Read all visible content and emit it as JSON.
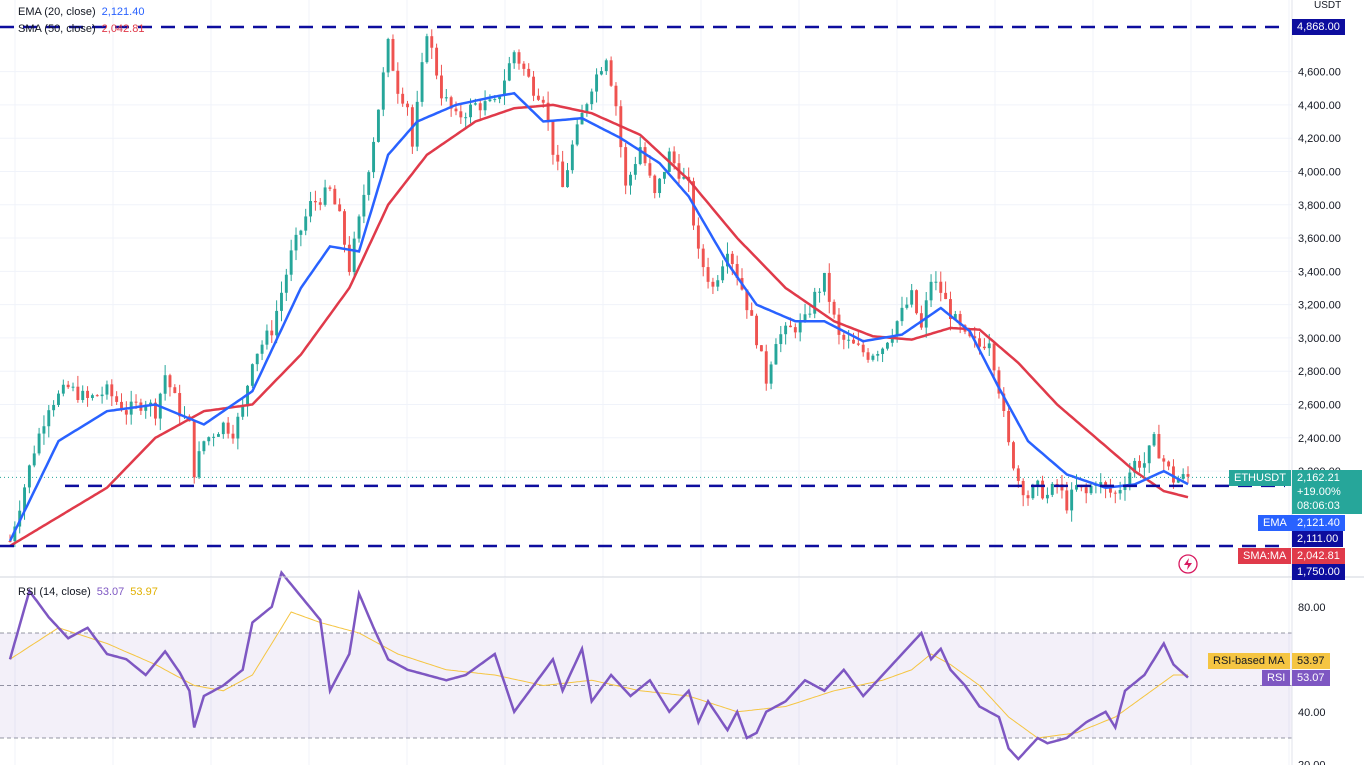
{
  "legend": {
    "ema_label": "EMA (20, close)",
    "ema_value": "2,121.40",
    "sma_label": "SMA (50, close)",
    "sma_value": "2,042.81",
    "rsi_label": "RSI (14, close)",
    "rsi_value": "53.07",
    "rsi_ma_value": "53.97"
  },
  "price_axis": {
    "currency": "USDT",
    "ticks": [
      "4,600.00",
      "4,400.00",
      "4,200.00",
      "4,000.00",
      "3,800.00",
      "3,600.00",
      "3,400.00",
      "3,200.00",
      "3,000.00",
      "2,800.00",
      "2,600.00",
      "2,400.00",
      "2,200.00"
    ],
    "tick_values": [
      4600,
      4400,
      4200,
      4000,
      3800,
      3600,
      3400,
      3200,
      3000,
      2800,
      2600,
      2400,
      2200
    ]
  },
  "rsi_axis": {
    "ticks": [
      "80.00",
      "40.00",
      "20.00"
    ],
    "tick_values": [
      80,
      40,
      20
    ],
    "band": [
      30,
      70
    ]
  },
  "tags": {
    "level_top": "4,868.00",
    "symbol": "ETHUSDT",
    "last_price": "2,162.21",
    "change": "+19.00%",
    "countdown": "08:06:03",
    "ema_name": "EMA",
    "ema_value": "2,121.40",
    "level_mid": "2,111.00",
    "sma_name": "SMA:MA",
    "sma_value": "2,042.81",
    "level_low": "1,750.00",
    "rsi_ma_name": "RSI-based MA",
    "rsi_ma_value": "53.97",
    "rsi_name": "RSI",
    "rsi_value": "53.07"
  },
  "colors": {
    "up": "#26a69a",
    "down": "#ef5350",
    "ema": "#2962ff",
    "sma": "#e03a4a",
    "level": "#0d0d9e",
    "rsi": "#7e57c2",
    "rsi_ma": "#f5c542",
    "last_price": "#26a69a"
  },
  "chart_data": {
    "type": "candlestick",
    "symbol": "ETHUSDT",
    "horizontal_levels": [
      4868,
      2111,
      1750
    ],
    "last_price": 2162.21,
    "ema20_last": 2121.4,
    "sma50_last": 2042.81,
    "rsi_last": 53.07,
    "rsi_ma_last": 53.97,
    "price_path": [
      [
        0,
        1780
      ],
      [
        5,
        2330
      ],
      [
        8,
        2600
      ],
      [
        12,
        2700
      ],
      [
        16,
        2630
      ],
      [
        20,
        2680
      ],
      [
        24,
        2560
      ],
      [
        28,
        2620
      ],
      [
        30,
        2560
      ],
      [
        32,
        2780
      ],
      [
        35,
        2560
      ],
      [
        37,
        2470
      ],
      [
        38,
        2200
      ],
      [
        40,
        2380
      ],
      [
        44,
        2480
      ],
      [
        46,
        2440
      ],
      [
        48,
        2570
      ],
      [
        50,
        2880
      ],
      [
        54,
        3050
      ],
      [
        58,
        3500
      ],
      [
        62,
        3800
      ],
      [
        66,
        3880
      ],
      [
        68,
        3720
      ],
      [
        70,
        3420
      ],
      [
        72,
        3700
      ],
      [
        75,
        4200
      ],
      [
        78,
        4760
      ],
      [
        80,
        4500
      ],
      [
        82,
        4400
      ],
      [
        83,
        4150
      ],
      [
        86,
        4850
      ],
      [
        89,
        4470
      ],
      [
        92,
        4320
      ],
      [
        96,
        4400
      ],
      [
        100,
        4400
      ],
      [
        104,
        4720
      ],
      [
        108,
        4500
      ],
      [
        110,
        4450
      ],
      [
        112,
        4130
      ],
      [
        114,
        3900
      ],
      [
        116,
        4150
      ],
      [
        120,
        4520
      ],
      [
        123,
        4700
      ],
      [
        125,
        4400
      ],
      [
        127,
        3900
      ],
      [
        130,
        4150
      ],
      [
        133,
        3850
      ],
      [
        136,
        4100
      ],
      [
        138,
        4000
      ],
      [
        140,
        3900
      ],
      [
        142,
        3500
      ],
      [
        145,
        3300
      ],
      [
        148,
        3550
      ],
      [
        151,
        3300
      ],
      [
        154,
        3000
      ],
      [
        156,
        2750
      ],
      [
        158,
        3000
      ],
      [
        161,
        3050
      ],
      [
        164,
        3100
      ],
      [
        166,
        3250
      ],
      [
        168,
        3350
      ],
      [
        171,
        3000
      ],
      [
        174,
        2950
      ],
      [
        177,
        2900
      ],
      [
        180,
        2950
      ],
      [
        183,
        3100
      ],
      [
        186,
        3250
      ],
      [
        188,
        3050
      ],
      [
        190,
        3350
      ],
      [
        192,
        3280
      ],
      [
        194,
        3150
      ],
      [
        197,
        3000
      ],
      [
        200,
        2950
      ],
      [
        202,
        3000
      ],
      [
        204,
        2700
      ],
      [
        206,
        2350
      ],
      [
        208,
        2150
      ],
      [
        210,
        2050
      ],
      [
        212,
        2100
      ],
      [
        214,
        2050
      ],
      [
        216,
        2120
      ],
      [
        218,
        2000
      ],
      [
        220,
        2100
      ],
      [
        222,
        2060
      ],
      [
        224,
        2150
      ],
      [
        226,
        2080
      ],
      [
        228,
        2060
      ],
      [
        230,
        2150
      ],
      [
        232,
        2250
      ],
      [
        234,
        2250
      ],
      [
        236,
        2380
      ],
      [
        238,
        2260
      ],
      [
        240,
        2150
      ],
      [
        243,
        2162
      ]
    ],
    "ema_path": [
      [
        0,
        1780
      ],
      [
        10,
        2380
      ],
      [
        20,
        2560
      ],
      [
        30,
        2600
      ],
      [
        40,
        2480
      ],
      [
        50,
        2680
      ],
      [
        60,
        3300
      ],
      [
        66,
        3550
      ],
      [
        72,
        3520
      ],
      [
        78,
        4100
      ],
      [
        84,
        4300
      ],
      [
        92,
        4400
      ],
      [
        100,
        4450
      ],
      [
        104,
        4470
      ],
      [
        110,
        4300
      ],
      [
        118,
        4320
      ],
      [
        126,
        4200
      ],
      [
        134,
        4050
      ],
      [
        140,
        3850
      ],
      [
        148,
        3450
      ],
      [
        154,
        3200
      ],
      [
        162,
        3100
      ],
      [
        168,
        3100
      ],
      [
        176,
        2980
      ],
      [
        184,
        3020
      ],
      [
        192,
        3180
      ],
      [
        198,
        3040
      ],
      [
        204,
        2700
      ],
      [
        210,
        2380
      ],
      [
        218,
        2180
      ],
      [
        226,
        2100
      ],
      [
        232,
        2120
      ],
      [
        238,
        2200
      ],
      [
        243,
        2121
      ]
    ],
    "sma_path": [
      [
        0,
        1750
      ],
      [
        20,
        2100
      ],
      [
        30,
        2400
      ],
      [
        40,
        2560
      ],
      [
        50,
        2600
      ],
      [
        60,
        2900
      ],
      [
        70,
        3300
      ],
      [
        78,
        3800
      ],
      [
        86,
        4100
      ],
      [
        96,
        4300
      ],
      [
        104,
        4380
      ],
      [
        112,
        4400
      ],
      [
        120,
        4350
      ],
      [
        130,
        4220
      ],
      [
        140,
        3950
      ],
      [
        150,
        3600
      ],
      [
        160,
        3300
      ],
      [
        170,
        3100
      ],
      [
        178,
        3010
      ],
      [
        186,
        2990
      ],
      [
        194,
        3060
      ],
      [
        200,
        3050
      ],
      [
        208,
        2850
      ],
      [
        216,
        2600
      ],
      [
        224,
        2400
      ],
      [
        232,
        2200
      ],
      [
        238,
        2080
      ],
      [
        243,
        2043
      ]
    ],
    "rsi_path": [
      [
        0,
        60
      ],
      [
        4,
        86
      ],
      [
        8,
        76
      ],
      [
        12,
        68
      ],
      [
        16,
        72
      ],
      [
        20,
        62
      ],
      [
        24,
        60
      ],
      [
        28,
        54
      ],
      [
        32,
        63
      ],
      [
        35,
        55
      ],
      [
        37,
        48
      ],
      [
        38,
        34
      ],
      [
        40,
        46
      ],
      [
        44,
        50
      ],
      [
        48,
        56
      ],
      [
        50,
        74
      ],
      [
        54,
        80
      ],
      [
        56,
        93
      ],
      [
        60,
        84
      ],
      [
        64,
        75
      ],
      [
        66,
        48
      ],
      [
        70,
        62
      ],
      [
        72,
        85
      ],
      [
        75,
        72
      ],
      [
        78,
        60
      ],
      [
        82,
        56
      ],
      [
        86,
        54
      ],
      [
        90,
        52
      ],
      [
        94,
        54
      ],
      [
        100,
        62
      ],
      [
        104,
        40
      ],
      [
        108,
        50
      ],
      [
        112,
        60
      ],
      [
        114,
        48
      ],
      [
        118,
        64
      ],
      [
        120,
        44
      ],
      [
        124,
        54
      ],
      [
        128,
        46
      ],
      [
        132,
        52
      ],
      [
        136,
        40
      ],
      [
        140,
        48
      ],
      [
        142,
        36
      ],
      [
        144,
        44
      ],
      [
        148,
        33
      ],
      [
        150,
        40
      ],
      [
        152,
        30
      ],
      [
        154,
        32
      ],
      [
        156,
        40
      ],
      [
        160,
        44
      ],
      [
        164,
        52
      ],
      [
        168,
        48
      ],
      [
        172,
        56
      ],
      [
        176,
        46
      ],
      [
        180,
        54
      ],
      [
        184,
        62
      ],
      [
        188,
        70
      ],
      [
        190,
        60
      ],
      [
        192,
        64
      ],
      [
        194,
        56
      ],
      [
        197,
        50
      ],
      [
        200,
        42
      ],
      [
        204,
        38
      ],
      [
        206,
        26
      ],
      [
        208,
        22
      ],
      [
        212,
        30
      ],
      [
        214,
        28
      ],
      [
        218,
        30
      ],
      [
        222,
        36
      ],
      [
        226,
        40
      ],
      [
        228,
        34
      ],
      [
        230,
        48
      ],
      [
        234,
        54
      ],
      [
        238,
        66
      ],
      [
        240,
        58
      ],
      [
        243,
        53
      ]
    ],
    "rsi_ma_path": [
      [
        0,
        60
      ],
      [
        10,
        72
      ],
      [
        20,
        66
      ],
      [
        30,
        58
      ],
      [
        38,
        50
      ],
      [
        44,
        48
      ],
      [
        50,
        54
      ],
      [
        58,
        78
      ],
      [
        64,
        74
      ],
      [
        72,
        70
      ],
      [
        80,
        62
      ],
      [
        90,
        56
      ],
      [
        100,
        54
      ],
      [
        110,
        50
      ],
      [
        120,
        52
      ],
      [
        130,
        48
      ],
      [
        140,
        46
      ],
      [
        150,
        40
      ],
      [
        160,
        42
      ],
      [
        170,
        48
      ],
      [
        180,
        52
      ],
      [
        186,
        56
      ],
      [
        190,
        62
      ],
      [
        194,
        58
      ],
      [
        200,
        50
      ],
      [
        206,
        38
      ],
      [
        212,
        30
      ],
      [
        220,
        32
      ],
      [
        228,
        38
      ],
      [
        234,
        46
      ],
      [
        240,
        54
      ],
      [
        243,
        54
      ]
    ]
  }
}
